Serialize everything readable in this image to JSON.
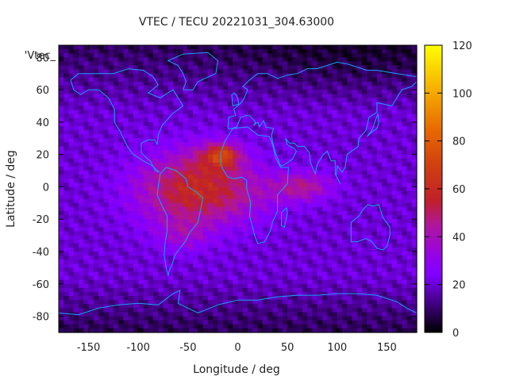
{
  "chart_data": {
    "type": "heatmap",
    "title": "VTEC / TECU 20221031_304.63000",
    "xlabel": "Longitude / deg",
    "ylabel": "Latitude / deg",
    "series_label": "'Vtec_",
    "xlim": [
      -180,
      180
    ],
    "ylim": [
      -90,
      87.5
    ],
    "x_ticks": [
      -150,
      -100,
      -50,
      0,
      50,
      100,
      150
    ],
    "y_ticks": [
      -80,
      -60,
      -40,
      -20,
      0,
      20,
      40,
      60,
      80
    ],
    "colorbar": {
      "range": [
        0,
        120
      ],
      "ticks": [
        0,
        20,
        40,
        60,
        80,
        100,
        120
      ],
      "palette": [
        {
          "value": 0,
          "color": "#000000"
        },
        {
          "value": 24,
          "color": "#8000ff"
        },
        {
          "value": 30,
          "color": "#9000f0"
        },
        {
          "value": 45,
          "color": "#b0169a"
        },
        {
          "value": 55,
          "color": "#c0202a"
        },
        {
          "value": 70,
          "color": "#d04010"
        },
        {
          "value": 85,
          "color": "#e86a00"
        },
        {
          "value": 100,
          "color": "#f5a800"
        },
        {
          "value": 120,
          "color": "#ffff00"
        }
      ]
    },
    "grid": false,
    "legend": "top-left",
    "coastline_color": "#1aa0ff"
  }
}
